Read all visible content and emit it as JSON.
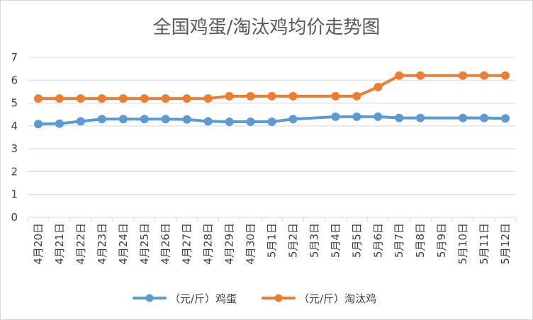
{
  "chart_data": {
    "type": "line",
    "title": "全国鸡蛋/淘汰鸡均价走势图",
    "xlabel": "",
    "ylabel": "",
    "ylim": [
      0,
      7
    ],
    "yticks": [
      0,
      1,
      2,
      3,
      4,
      5,
      6,
      7
    ],
    "grid": true,
    "legend": "bottom",
    "categories": [
      "4月20日",
      "4月21日",
      "4月22日",
      "4月23日",
      "4月24日",
      "4月25日",
      "4月26日",
      "4月27日",
      "4月28日",
      "4月29日",
      "4月30日",
      "5月1日",
      "5月2日",
      "5月3日",
      "5月4日",
      "5月5日",
      "5月6日",
      "5月7日",
      "5月8日",
      "5月9日",
      "5月10日",
      "5月11日",
      "5月12日"
    ],
    "series": [
      {
        "name": "（元/斤）鸡蛋",
        "color": "#5b9bd5",
        "values": [
          4.08,
          4.1,
          4.2,
          4.3,
          4.3,
          4.3,
          4.3,
          4.28,
          4.2,
          4.18,
          4.18,
          4.18,
          4.3,
          null,
          4.4,
          4.4,
          4.4,
          4.35,
          4.35,
          null,
          4.35,
          4.35,
          4.33
        ]
      },
      {
        "name": "（元/斤）淘汰鸡",
        "color": "#ed7d31",
        "values": [
          5.2,
          5.2,
          5.2,
          5.2,
          5.2,
          5.2,
          5.2,
          5.2,
          5.2,
          5.3,
          5.3,
          5.3,
          5.3,
          null,
          5.3,
          5.3,
          5.7,
          6.2,
          6.2,
          null,
          6.2,
          6.2,
          6.2
        ]
      }
    ]
  }
}
